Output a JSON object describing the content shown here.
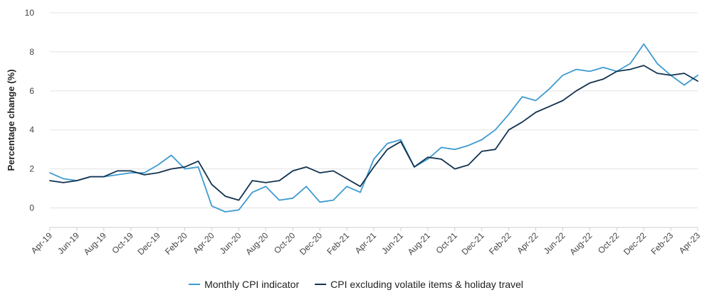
{
  "chart_data": {
    "type": "line",
    "title": "",
    "xlabel": "",
    "ylabel": "Percentage change (%)",
    "ylim": [
      -1,
      10
    ],
    "yticks": [
      0,
      2,
      4,
      6,
      8,
      10
    ],
    "grid": true,
    "legend_position": "bottom",
    "x": [
      "Apr-19",
      "May-19",
      "Jun-19",
      "Jul-19",
      "Aug-19",
      "Sep-19",
      "Oct-19",
      "Nov-19",
      "Dec-19",
      "Jan-20",
      "Feb-20",
      "Mar-20",
      "Apr-20",
      "May-20",
      "Jun-20",
      "Jul-20",
      "Aug-20",
      "Sep-20",
      "Oct-20",
      "Nov-20",
      "Dec-20",
      "Jan-21",
      "Feb-21",
      "Mar-21",
      "Apr-21",
      "May-21",
      "Jun-21",
      "Jul-21",
      "Aug-21",
      "Sep-21",
      "Oct-21",
      "Nov-21",
      "Dec-21",
      "Jan-22",
      "Feb-22",
      "Mar-22",
      "Apr-22",
      "May-22",
      "Jun-22",
      "Jul-22",
      "Aug-22",
      "Sep-22",
      "Oct-22",
      "Nov-22",
      "Dec-22",
      "Jan-23",
      "Feb-23",
      "Mar-23",
      "Apr-23"
    ],
    "x_tick_labels": [
      "Apr-19",
      "Jun-19",
      "Aug-19",
      "Oct-19",
      "Dec-19",
      "Feb-20",
      "Apr-20",
      "Jun-20",
      "Aug-20",
      "Oct-20",
      "Dec-20",
      "Feb-21",
      "Apr-21",
      "Jun-21",
      "Aug-21",
      "Oct-21",
      "Dec-21",
      "Feb-22",
      "Apr-22",
      "Jun-22",
      "Aug-22",
      "Oct-22",
      "Dec-22",
      "Feb-23",
      "Apr-23"
    ],
    "series": [
      {
        "name": "Monthly CPI indicator",
        "color": "#3d9bd1",
        "values": [
          1.8,
          1.5,
          1.4,
          1.6,
          1.6,
          1.7,
          1.8,
          1.8,
          2.2,
          2.7,
          2.0,
          2.1,
          0.1,
          -0.2,
          -0.1,
          0.8,
          1.1,
          0.4,
          0.5,
          1.1,
          0.3,
          0.4,
          1.1,
          0.8,
          2.5,
          3.3,
          3.5,
          2.1,
          2.5,
          3.1,
          3.0,
          3.2,
          3.5,
          4.0,
          4.8,
          5.7,
          5.5,
          6.1,
          6.8,
          7.1,
          7.0,
          7.2,
          7.0,
          7.4,
          8.4,
          7.4,
          6.8,
          6.3,
          6.8
        ]
      },
      {
        "name": "CPI excluding volatile items & holiday travel",
        "color": "#12324f",
        "values": [
          1.4,
          1.3,
          1.4,
          1.6,
          1.6,
          1.9,
          1.9,
          1.7,
          1.8,
          2.0,
          2.1,
          2.4,
          1.2,
          0.6,
          0.4,
          1.4,
          1.3,
          1.4,
          1.9,
          2.1,
          1.8,
          1.9,
          1.5,
          1.1,
          2.1,
          3.0,
          3.4,
          2.1,
          2.6,
          2.5,
          2.0,
          2.2,
          2.9,
          3.0,
          4.0,
          4.4,
          4.9,
          5.2,
          5.5,
          6.0,
          6.4,
          6.6,
          7.0,
          7.1,
          7.3,
          6.9,
          6.8,
          6.9,
          6.5
        ]
      }
    ]
  }
}
